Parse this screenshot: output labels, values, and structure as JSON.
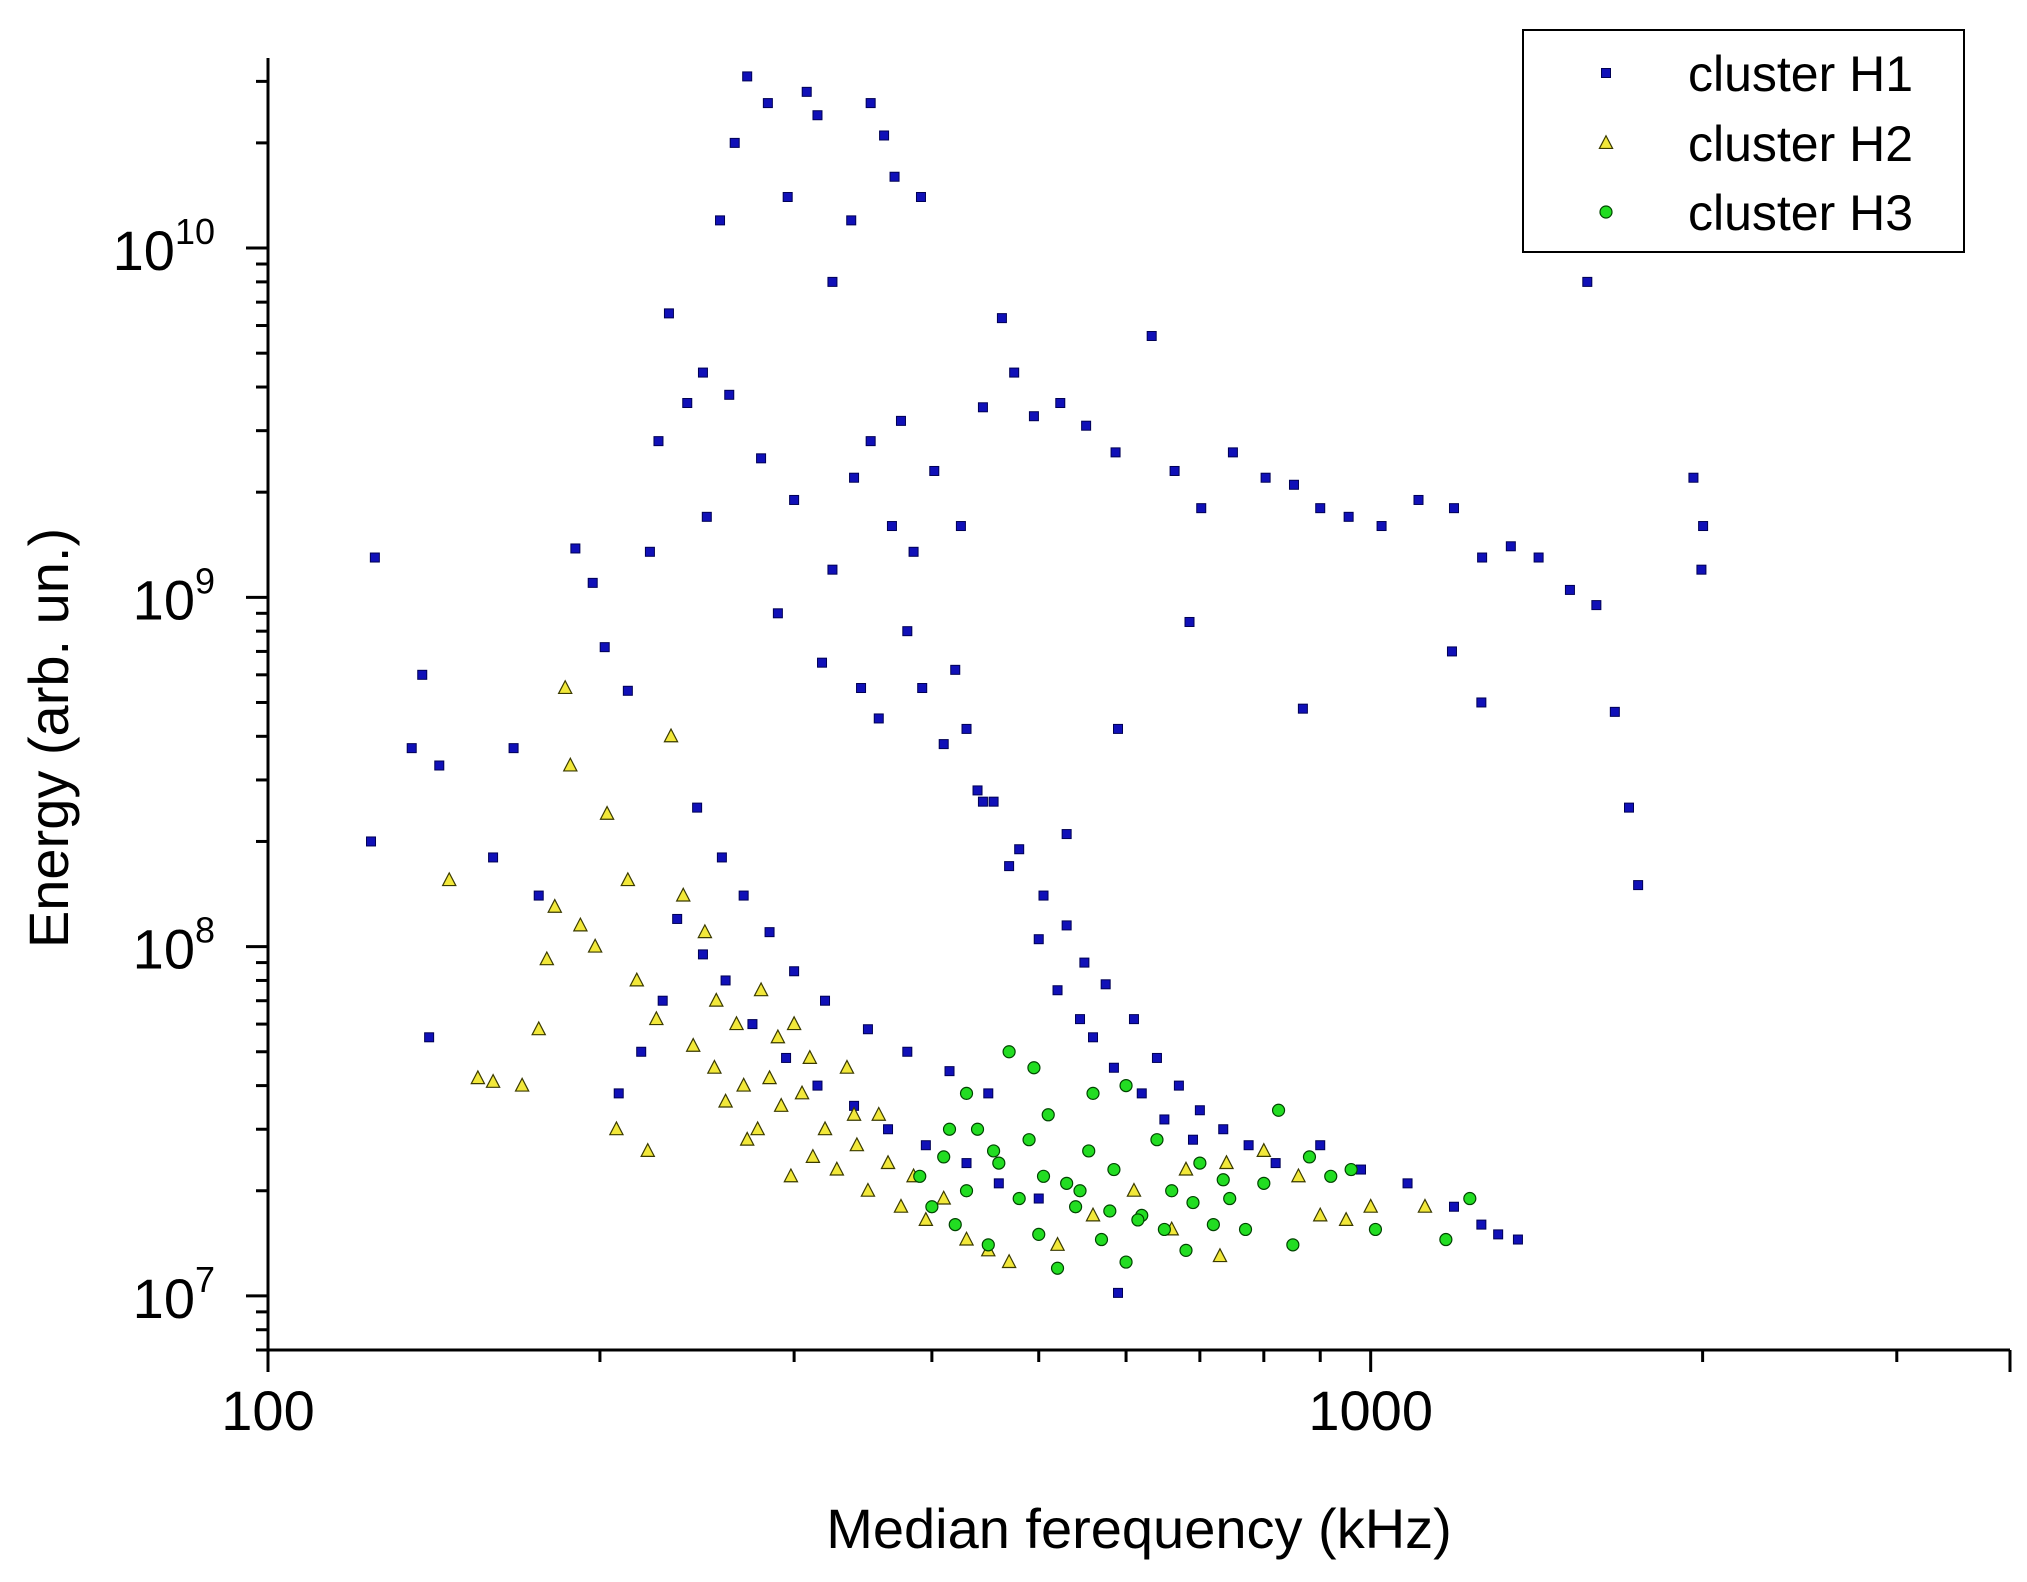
{
  "chart_data": {
    "type": "scatter",
    "title": "",
    "xlabel": "Median ferequency (kHz)",
    "ylabel": "Energy (arb. un.)",
    "x_scale": "log",
    "y_scale": "log",
    "xlim": [
      100,
      3800
    ],
    "ylim": [
      7000000,
      35000000000
    ],
    "x_ticks": [
      {
        "value": 100,
        "label": "100"
      },
      {
        "value": 1000,
        "label": "1000"
      }
    ],
    "y_ticks": [
      {
        "value": 10000000,
        "base": "10",
        "exp": "7"
      },
      {
        "value": 100000000,
        "base": "10",
        "exp": "8"
      },
      {
        "value": 1000000000,
        "base": "10",
        "exp": "9"
      },
      {
        "value": 10000000000,
        "base": "10",
        "exp": "10"
      }
    ],
    "grid": false,
    "legend_position": "top-right",
    "series": [
      {
        "name": "cluster H1",
        "marker": "square",
        "color": "#1010b8",
        "edge_color": "#000055",
        "points": [
          [
            125,
            1300000000
          ],
          [
            124,
            200000000
          ],
          [
            135,
            370000000
          ],
          [
            138,
            600000000
          ],
          [
            140,
            55000000
          ],
          [
            143,
            330000000
          ],
          [
            160,
            180000000
          ],
          [
            167,
            370000000
          ],
          [
            176,
            140000000
          ],
          [
            190,
            1380000000
          ],
          [
            197,
            1100000000
          ],
          [
            202,
            720000000
          ],
          [
            212,
            540000000
          ],
          [
            222,
            1350000000
          ],
          [
            226,
            2800000000
          ],
          [
            231,
            6500000000
          ],
          [
            240,
            3600000000
          ],
          [
            248,
            4400000000
          ],
          [
            257,
            12000000000
          ],
          [
            265,
            20000000000
          ],
          [
            272,
            31000000000
          ],
          [
            284,
            26000000000
          ],
          [
            296,
            14000000000
          ],
          [
            308,
            28000000000
          ],
          [
            315,
            24000000000
          ],
          [
            325,
            8000000000
          ],
          [
            338,
            12000000000
          ],
          [
            352,
            26000000000
          ],
          [
            362,
            21000000000
          ],
          [
            370,
            16000000000
          ],
          [
            391,
            14000000000
          ],
          [
            402,
            2300000000
          ],
          [
            425,
            1600000000
          ],
          [
            445,
            3500000000
          ],
          [
            463,
            6300000000
          ],
          [
            475,
            4400000000
          ],
          [
            495,
            3300000000
          ],
          [
            523,
            3600000000
          ],
          [
            552,
            3100000000
          ],
          [
            587,
            2600000000
          ],
          [
            633,
            5600000000
          ],
          [
            664,
            2300000000
          ],
          [
            702,
            1800000000
          ],
          [
            750,
            2600000000
          ],
          [
            803,
            2200000000
          ],
          [
            852,
            2100000000
          ],
          [
            900,
            1800000000
          ],
          [
            955,
            1700000000
          ],
          [
            1023,
            1600000000
          ],
          [
            1105,
            1900000000
          ],
          [
            1190,
            1800000000
          ],
          [
            1262,
            1300000000
          ],
          [
            1340,
            1400000000
          ],
          [
            1420,
            1300000000
          ],
          [
            1516,
            1050000000
          ],
          [
            1572,
            8000000000
          ],
          [
            1602,
            950000000
          ],
          [
            1665,
            470000000
          ],
          [
            1715,
            250000000
          ],
          [
            1748,
            150000000
          ],
          [
            1962,
            2200000000
          ],
          [
            2002,
            1600000000
          ],
          [
            1995,
            1200000000
          ],
          [
            1185,
            700000000
          ],
          [
            1260,
            500000000
          ],
          [
            685,
            850000000
          ],
          [
            868,
            480000000
          ],
          [
            590,
            420000000
          ],
          [
            530,
            210000000
          ],
          [
            445,
            260000000
          ],
          [
            290,
            900000000
          ],
          [
            318,
            650000000
          ],
          [
            352,
            2800000000
          ],
          [
            368,
            1600000000
          ],
          [
            375,
            3200000000
          ],
          [
            380,
            800000000
          ],
          [
            392,
            550000000
          ],
          [
            410,
            380000000
          ],
          [
            430,
            420000000
          ],
          [
            455,
            260000000
          ],
          [
            480,
            190000000
          ],
          [
            505,
            140000000
          ],
          [
            530,
            115000000
          ],
          [
            550,
            90000000
          ],
          [
            575,
            78000000
          ],
          [
            610,
            62000000
          ],
          [
            640,
            48000000
          ],
          [
            670,
            40000000
          ],
          [
            700,
            34000000
          ],
          [
            735,
            30000000
          ],
          [
            775,
            27000000
          ],
          [
            820,
            24000000
          ],
          [
            900,
            27000000
          ],
          [
            980,
            23000000
          ],
          [
            1080,
            21000000
          ],
          [
            1190,
            18000000
          ],
          [
            1260,
            16000000
          ],
          [
            1305,
            15000000
          ],
          [
            1360,
            14500000
          ],
          [
            590,
            10200000
          ],
          [
            250,
            1700000000
          ],
          [
            262,
            3800000000
          ],
          [
            280,
            2500000000
          ],
          [
            300,
            1900000000
          ],
          [
            325,
            1200000000
          ],
          [
            340,
            2200000000
          ],
          [
            345,
            550000000
          ],
          [
            358,
            450000000
          ],
          [
            385,
            1350000000
          ],
          [
            420,
            620000000
          ],
          [
            440,
            280000000
          ],
          [
            470,
            170000000
          ],
          [
            500,
            105000000
          ],
          [
            520,
            75000000
          ],
          [
            545,
            62000000
          ],
          [
            560,
            55000000
          ],
          [
            585,
            45000000
          ],
          [
            620,
            38000000
          ],
          [
            650,
            32000000
          ],
          [
            690,
            28000000
          ],
          [
            260,
            80000000
          ],
          [
            275,
            60000000
          ],
          [
            295,
            48000000
          ],
          [
            315,
            40000000
          ],
          [
            340,
            35000000
          ],
          [
            365,
            30000000
          ],
          [
            395,
            27000000
          ],
          [
            430,
            24000000
          ],
          [
            460,
            21000000
          ],
          [
            500,
            19000000
          ],
          [
            245,
            250000000
          ],
          [
            258,
            180000000
          ],
          [
            270,
            140000000
          ],
          [
            285,
            110000000
          ],
          [
            300,
            85000000
          ],
          [
            320,
            70000000
          ],
          [
            350,
            58000000
          ],
          [
            380,
            50000000
          ],
          [
            415,
            44000000
          ],
          [
            450,
            38000000
          ],
          [
            235,
            120000000
          ],
          [
            248,
            95000000
          ],
          [
            228,
            70000000
          ],
          [
            218,
            50000000
          ],
          [
            208,
            38000000
          ]
        ]
      },
      {
        "name": "cluster H2",
        "marker": "triangle",
        "color": "#f2e83a",
        "edge_color": "#3a3a00",
        "points": [
          [
            146,
            155000000
          ],
          [
            155,
            42000000
          ],
          [
            160,
            41000000
          ],
          [
            170,
            40000000
          ],
          [
            176,
            58000000
          ],
          [
            179,
            92000000
          ],
          [
            182,
            130000000
          ],
          [
            186,
            550000000
          ],
          [
            188,
            330000000
          ],
          [
            192,
            115000000
          ],
          [
            198,
            100000000
          ],
          [
            203,
            240000000
          ],
          [
            207,
            30000000
          ],
          [
            212,
            155000000
          ],
          [
            216,
            80000000
          ],
          [
            221,
            26000000
          ],
          [
            225,
            62000000
          ],
          [
            232,
            400000000
          ],
          [
            238,
            140000000
          ],
          [
            243,
            52000000
          ],
          [
            249,
            110000000
          ],
          [
            254,
            45000000
          ],
          [
            260,
            36000000
          ],
          [
            266,
            60000000
          ],
          [
            272,
            28000000
          ],
          [
            278,
            30000000
          ],
          [
            285,
            42000000
          ],
          [
            292,
            35000000
          ],
          [
            298,
            22000000
          ],
          [
            305,
            38000000
          ],
          [
            312,
            25000000
          ],
          [
            320,
            30000000
          ],
          [
            328,
            23000000
          ],
          [
            335,
            45000000
          ],
          [
            342,
            27000000
          ],
          [
            350,
            20000000
          ],
          [
            358,
            33000000
          ],
          [
            365,
            24000000
          ],
          [
            375,
            18000000
          ],
          [
            385,
            22000000
          ],
          [
            395,
            16500000
          ],
          [
            410,
            19000000
          ],
          [
            430,
            14500000
          ],
          [
            450,
            13500000
          ],
          [
            470,
            12500000
          ],
          [
            520,
            14000000
          ],
          [
            560,
            17000000
          ],
          [
            610,
            20000000
          ],
          [
            680,
            23000000
          ],
          [
            740,
            24000000
          ],
          [
            800,
            26000000
          ],
          [
            860,
            22000000
          ],
          [
            900,
            17000000
          ],
          [
            950,
            16500000
          ],
          [
            1000,
            18000000
          ],
          [
            1120,
            18000000
          ],
          [
            730,
            13000000
          ],
          [
            660,
            15500000
          ],
          [
            290,
            55000000
          ],
          [
            310,
            48000000
          ],
          [
            340,
            33000000
          ],
          [
            270,
            40000000
          ],
          [
            255,
            70000000
          ],
          [
            300,
            60000000
          ],
          [
            280,
            75000000
          ]
        ]
      },
      {
        "name": "cluster H3",
        "marker": "circle",
        "color": "#22dd22",
        "edge_color": "#004400",
        "points": [
          [
            390,
            22000000
          ],
          [
            400,
            18000000
          ],
          [
            410,
            25000000
          ],
          [
            420,
            16000000
          ],
          [
            430,
            20000000
          ],
          [
            440,
            30000000
          ],
          [
            450,
            14000000
          ],
          [
            460,
            24000000
          ],
          [
            470,
            50000000
          ],
          [
            480,
            19000000
          ],
          [
            490,
            28000000
          ],
          [
            500,
            15000000
          ],
          [
            510,
            33000000
          ],
          [
            520,
            12000000
          ],
          [
            530,
            21000000
          ],
          [
            540,
            18000000
          ],
          [
            555,
            26000000
          ],
          [
            570,
            14500000
          ],
          [
            585,
            23000000
          ],
          [
            600,
            12500000
          ],
          [
            620,
            17000000
          ],
          [
            640,
            28000000
          ],
          [
            660,
            20000000
          ],
          [
            680,
            13500000
          ],
          [
            700,
            24000000
          ],
          [
            720,
            16000000
          ],
          [
            745,
            19000000
          ],
          [
            770,
            15500000
          ],
          [
            800,
            21000000
          ],
          [
            825,
            34000000
          ],
          [
            850,
            14000000
          ],
          [
            880,
            25000000
          ],
          [
            920,
            22000000
          ],
          [
            960,
            23000000
          ],
          [
            1010,
            15500000
          ],
          [
            1170,
            14500000
          ],
          [
            1230,
            19000000
          ],
          [
            600,
            40000000
          ],
          [
            560,
            38000000
          ],
          [
            495,
            45000000
          ],
          [
            430,
            38000000
          ],
          [
            415,
            30000000
          ],
          [
            455,
            26000000
          ],
          [
            505,
            22000000
          ],
          [
            545,
            20000000
          ],
          [
            580,
            17500000
          ],
          [
            615,
            16500000
          ],
          [
            650,
            15500000
          ],
          [
            690,
            18500000
          ],
          [
            735,
            21500000
          ]
        ]
      }
    ]
  }
}
